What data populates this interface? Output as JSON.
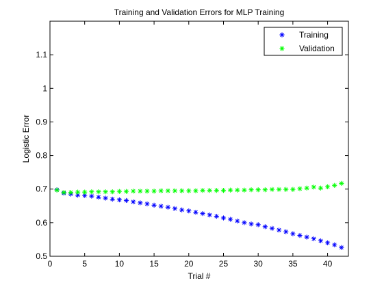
{
  "chart_data": {
    "type": "scatter",
    "title": "Training and Validation Errors for MLP Training",
    "xlabel": "Trial #",
    "ylabel": "Logistic Error",
    "xlim": [
      0,
      43
    ],
    "ylim": [
      0.5,
      1.2
    ],
    "xticks": [
      0,
      5,
      10,
      15,
      20,
      25,
      30,
      35,
      40
    ],
    "yticks": [
      0.5,
      0.6,
      0.7,
      0.8,
      0.9,
      1,
      1.1
    ],
    "xtick_labels": [
      "0",
      "5",
      "10",
      "15",
      "20",
      "25",
      "30",
      "35",
      "40"
    ],
    "ytick_labels": [
      "0.5",
      "0.6",
      "0.7",
      "0.8",
      "0.9",
      "1",
      "1.1"
    ],
    "grid": false,
    "legend": "top-right",
    "x": [
      1,
      2,
      3,
      4,
      5,
      6,
      7,
      8,
      9,
      10,
      11,
      12,
      13,
      14,
      15,
      16,
      17,
      18,
      19,
      20,
      21,
      22,
      23,
      24,
      25,
      26,
      27,
      28,
      29,
      30,
      31,
      32,
      33,
      34,
      35,
      36,
      37,
      38,
      39,
      40,
      41,
      42
    ],
    "series": [
      {
        "name": "Training",
        "color": "#0000ff",
        "marker": "asterisk",
        "values": [
          0.698,
          0.688,
          0.685,
          0.682,
          0.681,
          0.679,
          0.676,
          0.673,
          0.67,
          0.668,
          0.666,
          0.662,
          0.659,
          0.656,
          0.652,
          0.649,
          0.646,
          0.642,
          0.638,
          0.635,
          0.631,
          0.627,
          0.623,
          0.619,
          0.614,
          0.61,
          0.605,
          0.6,
          0.596,
          0.594,
          0.588,
          0.583,
          0.578,
          0.573,
          0.567,
          0.562,
          0.557,
          0.552,
          0.546,
          0.54,
          0.534,
          0.526
        ]
      },
      {
        "name": "Validation",
        "color": "#00ff00",
        "marker": "asterisk",
        "values": [
          0.697,
          0.69,
          0.69,
          0.691,
          0.691,
          0.692,
          0.692,
          0.692,
          0.692,
          0.693,
          0.693,
          0.694,
          0.694,
          0.694,
          0.694,
          0.695,
          0.695,
          0.695,
          0.695,
          0.695,
          0.695,
          0.696,
          0.696,
          0.696,
          0.696,
          0.697,
          0.697,
          0.697,
          0.698,
          0.698,
          0.698,
          0.699,
          0.699,
          0.699,
          0.699,
          0.701,
          0.703,
          0.706,
          0.703,
          0.707,
          0.711,
          0.717
        ]
      }
    ]
  }
}
